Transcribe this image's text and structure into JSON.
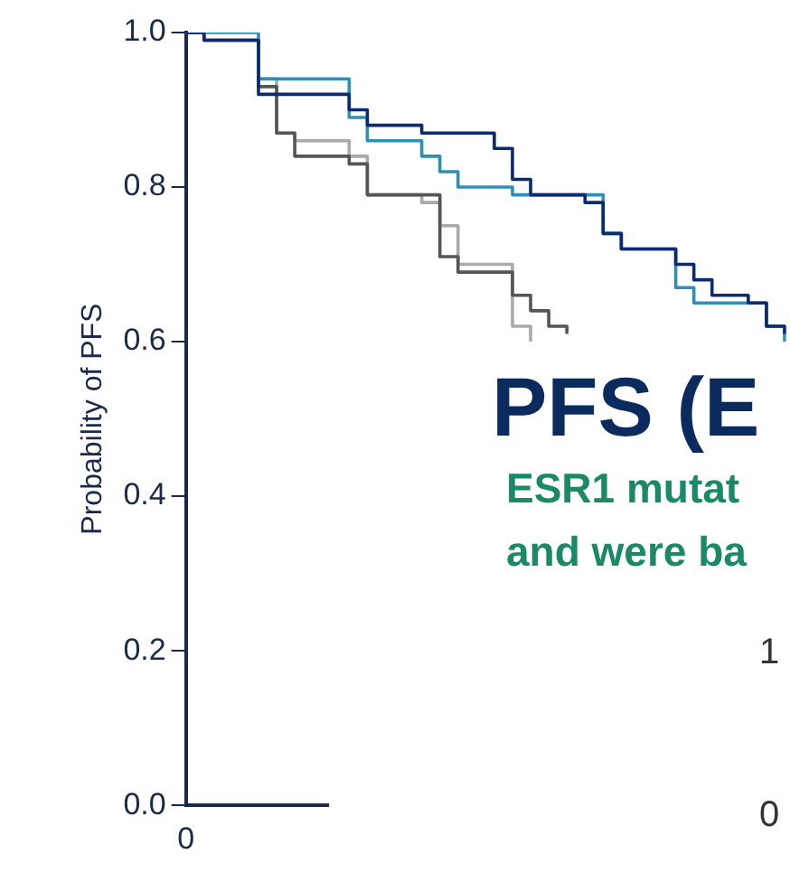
{
  "chart_data": {
    "type": "step",
    "ylabel": "Probability of PFS",
    "categories": [
      "0",
      null,
      null,
      null,
      null,
      null,
      null,
      null,
      null,
      null,
      null,
      null,
      null,
      null,
      null,
      null,
      null,
      null,
      null,
      null,
      null,
      null,
      null,
      null,
      null,
      null,
      null,
      null,
      null,
      null,
      null,
      null,
      null,
      null
    ],
    "series": [
      {
        "color": "#0b2a6f",
        "values": [
          1.0,
          0.99,
          0.99,
          0.99,
          0.92,
          0.92,
          0.92,
          0.92,
          0.92,
          0.9,
          0.88,
          0.88,
          0.88,
          0.87,
          0.87,
          0.87,
          0.87,
          0.85,
          0.81,
          0.79,
          0.79,
          0.79,
          0.78,
          0.74,
          0.72,
          0.72,
          0.72,
          0.7,
          0.68,
          0.66,
          0.66,
          0.65,
          0.62,
          0.61
        ]
      },
      {
        "color": "#2f8fb5",
        "values": [
          1.0,
          1.0,
          1.0,
          1.0,
          0.94,
          0.94,
          0.94,
          0.94,
          0.94,
          0.89,
          0.86,
          0.86,
          0.86,
          0.84,
          0.82,
          0.8,
          0.8,
          0.8,
          0.79,
          0.79,
          0.79,
          0.79,
          0.79,
          0.74,
          0.72,
          0.72,
          0.72,
          0.67,
          0.65,
          0.65,
          0.65,
          0.65,
          0.62,
          0.6
        ]
      },
      {
        "color": "#555555",
        "values": [
          1.0,
          0.99,
          0.99,
          0.99,
          0.93,
          0.87,
          0.84,
          0.84,
          0.84,
          0.83,
          0.79,
          0.79,
          0.79,
          0.79,
          0.71,
          0.69,
          0.69,
          0.69,
          0.66,
          0.64,
          0.62,
          0.61,
          null,
          null,
          null,
          null,
          null,
          null,
          null,
          null,
          null,
          null,
          null,
          null
        ]
      },
      {
        "color": "#aaaaaa",
        "values": [
          1.0,
          0.99,
          0.99,
          0.99,
          0.94,
          0.87,
          0.86,
          0.86,
          0.86,
          0.84,
          0.79,
          0.79,
          0.79,
          0.78,
          0.75,
          0.7,
          0.7,
          0.7,
          0.62,
          0.6,
          null,
          null,
          null,
          null,
          null,
          null,
          null,
          null,
          null,
          null,
          null,
          null,
          null,
          null
        ]
      }
    ],
    "ylim": [
      0,
      1.0
    ],
    "yticks": [
      {
        "value": 0,
        "label": "0.0"
      },
      {
        "value": 0.2,
        "label": "0.2"
      },
      {
        "value": 0.4,
        "label": "0.4"
      },
      {
        "value": 0.6,
        "label": "0.6"
      },
      {
        "value": 0.8,
        "label": "0.8"
      },
      {
        "value": 1.0,
        "label": "1.0"
      }
    ],
    "grid": false,
    "legend": false,
    "marker": "none",
    "line_style": "solid",
    "annotations": [
      "PFS (E",
      "ESR1 mutat",
      "and were ba",
      "1",
      "0"
    ]
  }
}
